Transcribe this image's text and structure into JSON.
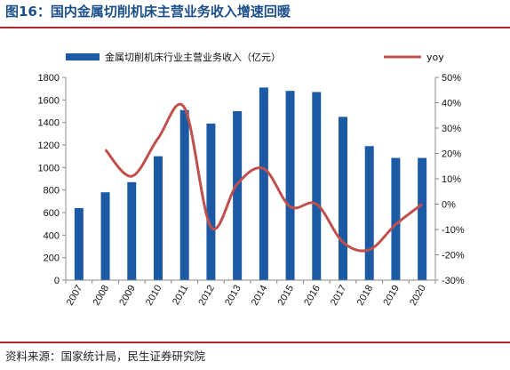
{
  "figure": {
    "title": "图16：国内金属切削机床主营业务收入增速回暖",
    "source": "资料来源：国家统计局，民生证券研究院"
  },
  "chart_data": {
    "type": "bar",
    "x": [
      "2007",
      "2008",
      "2009",
      "2010",
      "2011",
      "2012",
      "2013",
      "2014",
      "2015",
      "2016",
      "2017",
      "2018",
      "2019",
      "2020"
    ],
    "series": [
      {
        "name": "金属切削机床行业主营业务收入（亿元）",
        "type": "bar",
        "axis": "left",
        "color": "#1c5aa6",
        "values": [
          640,
          780,
          870,
          1100,
          1510,
          1390,
          1500,
          1710,
          1680,
          1670,
          1450,
          1190,
          1085,
          1085
        ]
      },
      {
        "name": "yoy",
        "type": "line",
        "axis": "right",
        "color": "#c0504d",
        "values": [
          null,
          21.5,
          11,
          26,
          38,
          -9,
          8,
          14,
          -1,
          0,
          -15,
          -18,
          -8,
          0
        ]
      }
    ],
    "ylim": [
      0,
      1800
    ],
    "yticks": [
      0,
      200,
      400,
      600,
      800,
      1000,
      1200,
      1400,
      1600,
      1800
    ],
    "y2lim": [
      -30,
      50
    ],
    "y2ticks": [
      "-30%",
      "-20%",
      "-10%",
      "0%",
      "10%",
      "20%",
      "30%",
      "40%",
      "50%"
    ],
    "legend_position": "top",
    "grid": false
  }
}
